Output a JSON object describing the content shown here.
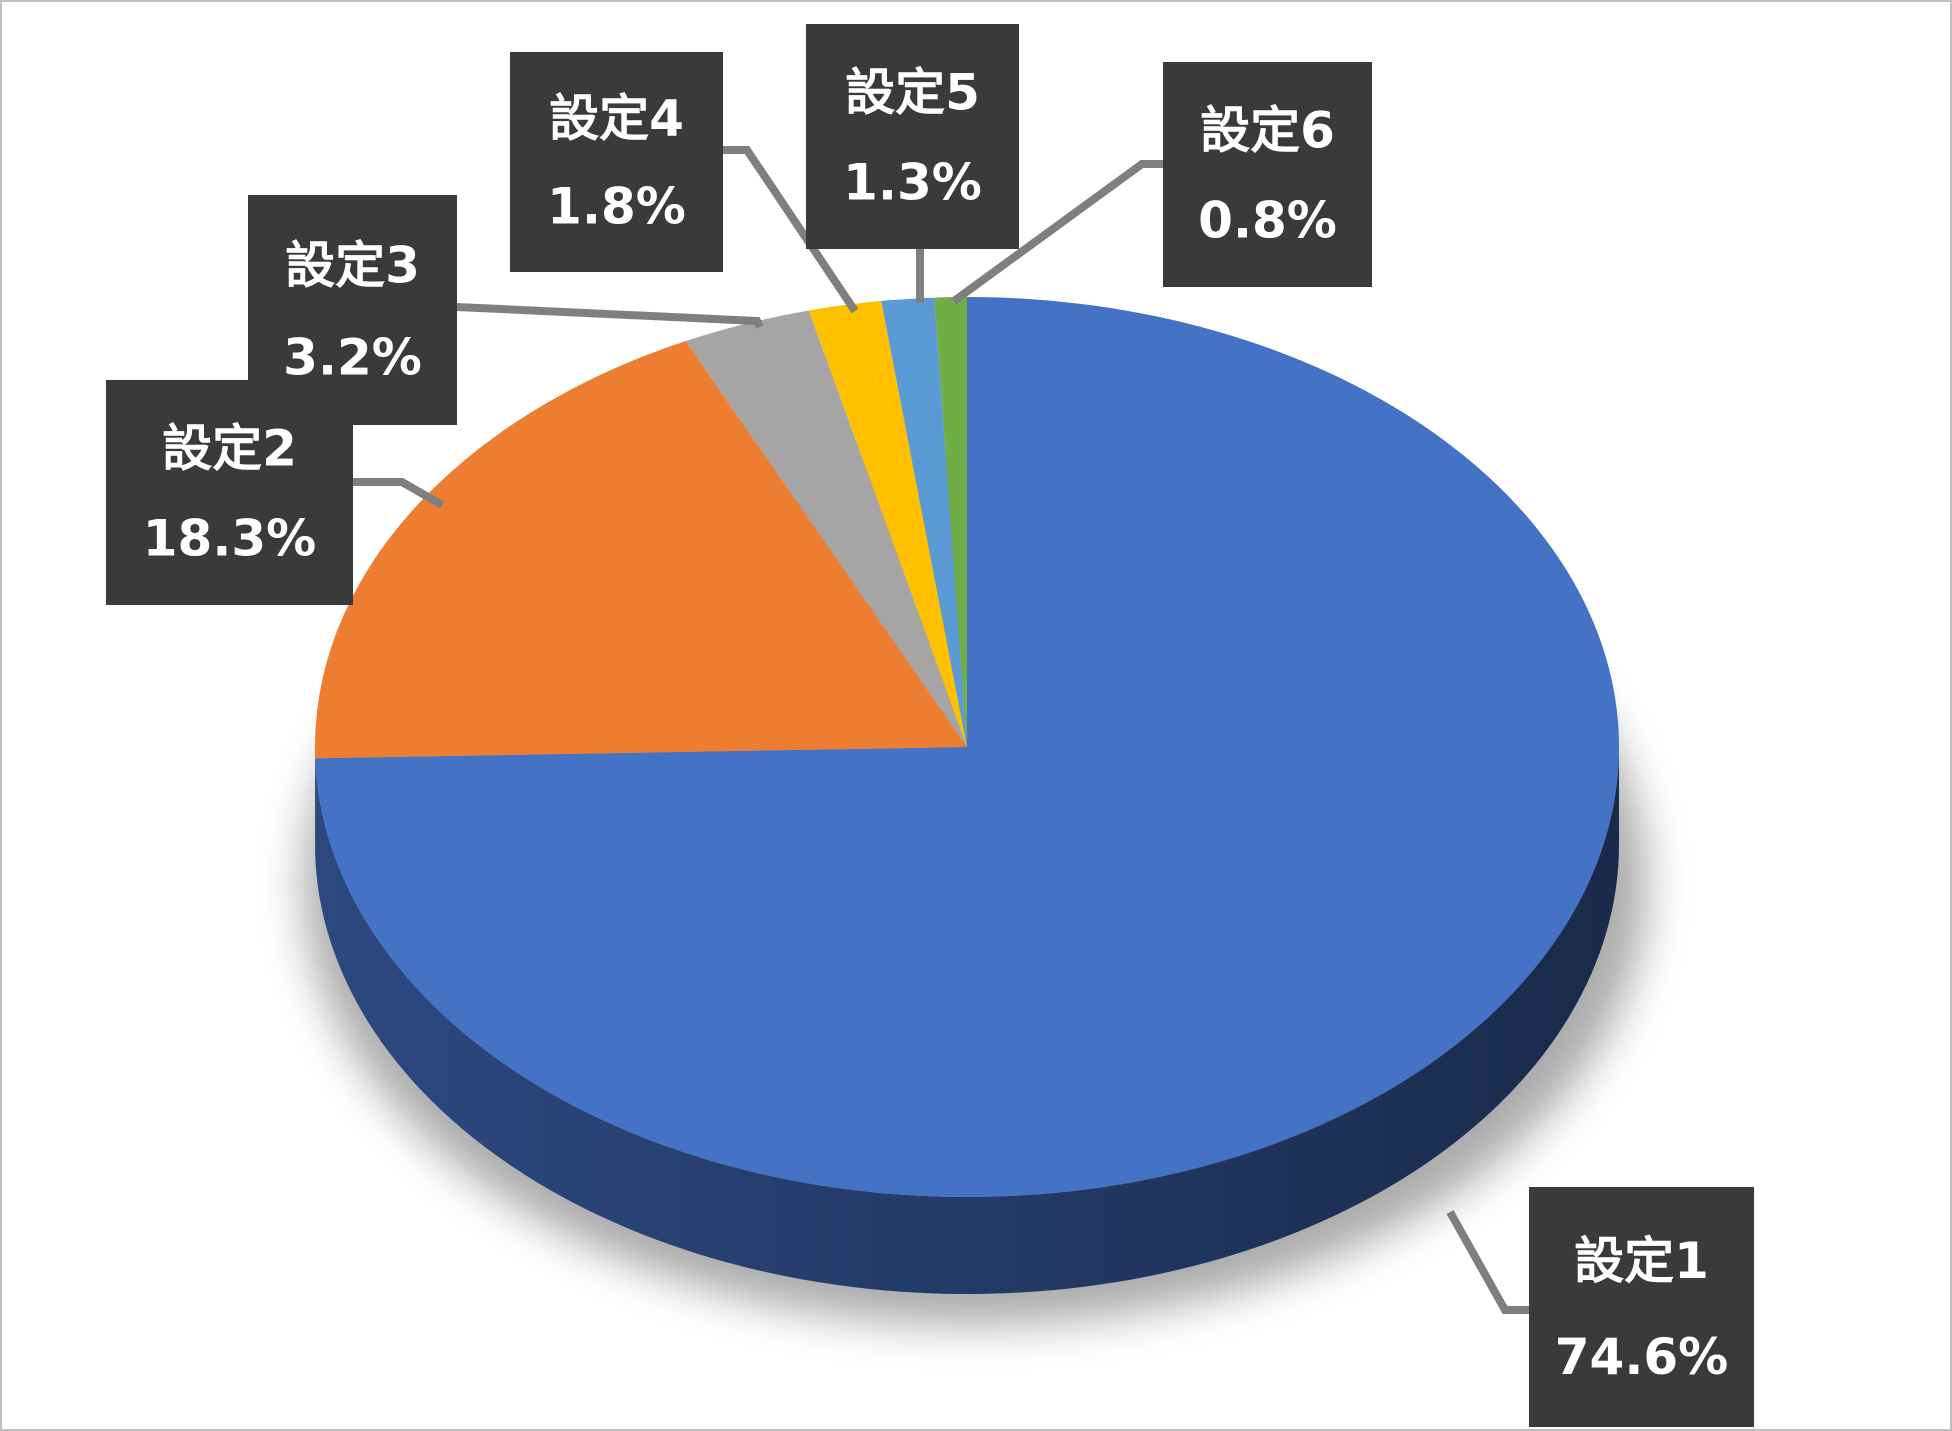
{
  "chart_data": {
    "type": "pie",
    "style": "3d",
    "title": "",
    "categories": [
      "設定1",
      "設定2",
      "設定3",
      "設定4",
      "設定5",
      "設定6"
    ],
    "values": [
      74.6,
      18.3,
      3.2,
      1.8,
      1.3,
      0.8
    ],
    "value_labels": [
      "74.6%",
      "18.3%",
      "3.2%",
      "1.8%",
      "1.3%",
      "0.8%"
    ],
    "colors": [
      "#4472C4",
      "#ED7D31",
      "#A5A5A5",
      "#FFC000",
      "#5B9BD5",
      "#70AD47"
    ],
    "side_colors": [
      "#2E4C86",
      "#9E531F",
      "#6E6E6E",
      "#A88000",
      "#3D6890",
      "#4B7430"
    ],
    "legend": "none",
    "data_labels": "callout boxes showing category name and percentage"
  }
}
